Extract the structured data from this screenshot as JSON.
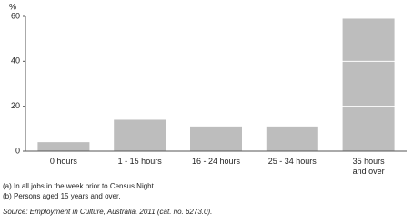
{
  "chart_data": {
    "type": "bar",
    "y_label": "%",
    "categories": [
      "0 hours",
      "1 - 15 hours",
      "16 - 24 hours",
      "25 - 34 hours",
      "35 hours\nand over"
    ],
    "values": [
      4,
      14,
      11,
      11,
      59
    ],
    "color": "#bdbdbd",
    "ylim": [
      0,
      60
    ],
    "yticks": [
      0,
      20,
      40,
      60
    ],
    "grid": true,
    "footnotes": [
      "(a) In all jobs in the week prior to Census Night.",
      "(b) Persons aged 15 years and over."
    ],
    "source": "Source: Employment in Culture, Australia, 2011 (cat. no. 6273.0)."
  }
}
